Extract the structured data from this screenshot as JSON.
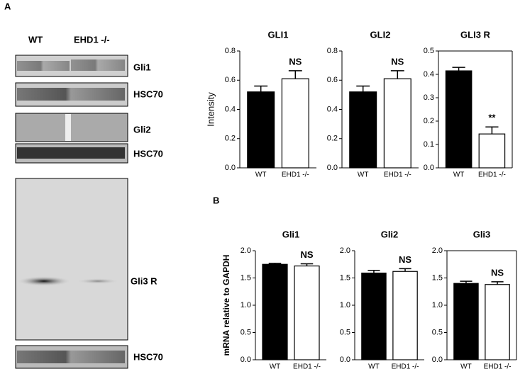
{
  "panels": [
    "A",
    "B"
  ],
  "blot": {
    "lanes": [
      "WT",
      "EHD1 -/-"
    ],
    "bands": [
      "Gli1",
      "HSC70",
      "Gli2",
      "HSC70",
      "Gli3 R",
      "HSC70"
    ]
  },
  "chart_data": [
    {
      "type": "bar",
      "title": "GLI1",
      "ylabel": "Intensity",
      "categories": [
        "WT",
        "EHD1 -/-"
      ],
      "values": [
        0.52,
        0.61
      ],
      "errors": [
        0.04,
        0.055
      ],
      "colors": [
        "#000000",
        "#ffffff"
      ],
      "annotations": [
        null,
        "NS"
      ],
      "ylim": [
        0,
        0.8
      ],
      "yticks": [
        {
          "value": 0,
          "label": "0.0"
        },
        0.2,
        0.4,
        0.6,
        0.8
      ]
    },
    {
      "type": "bar",
      "title": "GLI2",
      "categories": [
        "WT",
        "EHD1 -/-"
      ],
      "values": [
        0.52,
        0.61
      ],
      "errors": [
        0.04,
        0.055
      ],
      "colors": [
        "#000000",
        "#ffffff"
      ],
      "annotations": [
        null,
        "NS"
      ],
      "ylim": [
        0,
        0.8
      ],
      "yticks": [
        {
          "value": 0,
          "label": "0.0"
        },
        0.2,
        0.4,
        0.6,
        0.8
      ]
    },
    {
      "type": "bar",
      "title": "GLI3 R",
      "categories": [
        "WT",
        "EHD1 -/-"
      ],
      "values": [
        0.415,
        0.145
      ],
      "errors": [
        0.015,
        0.03
      ],
      "colors": [
        "#000000",
        "#ffffff"
      ],
      "annotations": [
        null,
        "**"
      ],
      "ylim": [
        0,
        0.5
      ],
      "yticks": [
        {
          "value": 0,
          "label": "0.0"
        },
        0.1,
        0.2,
        0.3,
        0.4,
        0.5
      ]
    },
    {
      "type": "bar",
      "title": "Gli1",
      "ylabel": "mRNA relative to GAPDH",
      "categories": [
        "WT",
        "EHD1 -/-"
      ],
      "values": [
        1.75,
        1.72
      ],
      "errors": [
        0.02,
        0.04
      ],
      "colors": [
        "#000000",
        "#ffffff"
      ],
      "annotations": [
        null,
        "NS"
      ],
      "ylim": [
        0,
        2
      ],
      "yticks": [
        {
          "value": 0,
          "label": "0.0"
        },
        0.5,
        {
          "value": 1,
          "label": "1.0"
        },
        1.5,
        {
          "value": 2,
          "label": "2.0"
        }
      ]
    },
    {
      "type": "bar",
      "title": "Gli2",
      "categories": [
        "WT",
        "EHD1 -/-"
      ],
      "values": [
        1.59,
        1.62
      ],
      "errors": [
        0.05,
        0.05
      ],
      "colors": [
        "#000000",
        "#ffffff"
      ],
      "annotations": [
        null,
        "NS"
      ],
      "ylim": [
        0,
        2
      ],
      "yticks": [
        {
          "value": 0,
          "label": "0.0"
        },
        0.5,
        {
          "value": 1,
          "label": "1.0"
        },
        1.5,
        {
          "value": 2,
          "label": "2.0"
        }
      ]
    },
    {
      "type": "bar",
      "title": "Gli3",
      "categories": [
        "WT",
        "EHD1 -/-"
      ],
      "values": [
        1.4,
        1.38
      ],
      "errors": [
        0.04,
        0.05
      ],
      "colors": [
        "#000000",
        "#ffffff"
      ],
      "annotations": [
        null,
        "NS"
      ],
      "ylim": [
        0,
        2
      ],
      "yticks": [
        {
          "value": 0,
          "label": "0.0"
        },
        0.5,
        {
          "value": 1,
          "label": "1.0"
        },
        1.5,
        {
          "value": 2,
          "label": "2.0"
        }
      ]
    }
  ]
}
